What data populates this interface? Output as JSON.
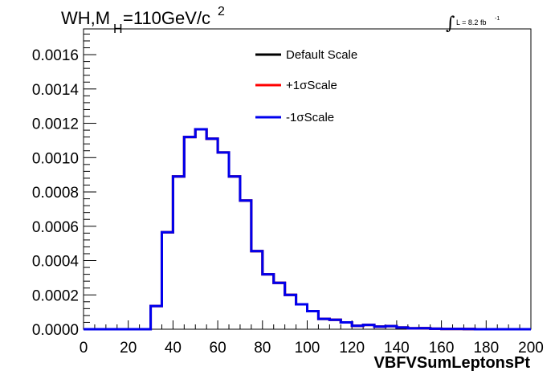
{
  "chart_data": {
    "type": "histogram",
    "title": {
      "prefix": "WH,M",
      "subscript": "H",
      "value": "=110GeV/c",
      "superscript": "2"
    },
    "luminosity": {
      "text": "L = 8.2 fb",
      "superscript": "-1",
      "integral_symbol": "∫"
    },
    "xlabel": "VBFVSumLeptonsPt",
    "ylabel": "",
    "xlim": [
      0,
      200
    ],
    "ylim": [
      0,
      0.00175
    ],
    "x_ticks": [
      0,
      20,
      40,
      60,
      80,
      100,
      120,
      140,
      160,
      180,
      200
    ],
    "x_tick_labels": [
      "0",
      "20",
      "40",
      "60",
      "80",
      "100",
      "120",
      "140",
      "160",
      "180",
      "200"
    ],
    "y_ticks": [
      0,
      0.0002,
      0.0004,
      0.0006,
      0.0008,
      0.001,
      0.0012,
      0.0014,
      0.0016
    ],
    "y_tick_labels": [
      "0.0000",
      "0.0002",
      "0.0004",
      "0.0006",
      "0.0008",
      "0.0010",
      "0.0012",
      "0.0014",
      "0.0016"
    ],
    "bin_edges": [
      0,
      5,
      10,
      15,
      20,
      25,
      30,
      35,
      40,
      45,
      50,
      55,
      60,
      65,
      70,
      75,
      80,
      85,
      90,
      95,
      100,
      105,
      110,
      115,
      120,
      125,
      130,
      135,
      140,
      145,
      150,
      155,
      160,
      165,
      170,
      175,
      180,
      185,
      190,
      195,
      200
    ],
    "legend_position": "top-center",
    "series": [
      {
        "name": "Default Scale",
        "color": "#000000",
        "values": [
          0,
          0,
          0,
          0,
          0,
          0,
          0.000135,
          0.000565,
          0.00089,
          0.00112,
          0.001165,
          0.00111,
          0.00103,
          0.00089,
          0.00075,
          0.000455,
          0.00032,
          0.00027,
          0.0002,
          0.000145,
          0.000105,
          6e-05,
          5.5e-05,
          4e-05,
          2e-05,
          2.5e-05,
          1.5e-05,
          1.8e-05,
          1e-05,
          5e-06,
          6e-06,
          3e-06,
          2e-06,
          2e-06,
          1e-06,
          0,
          0,
          0,
          0,
          0
        ]
      },
      {
        "name": "+1σScale",
        "color": "#ff0000",
        "values": [
          0,
          0,
          0,
          0,
          0,
          0,
          0.000135,
          0.000565,
          0.00089,
          0.00112,
          0.001165,
          0.00111,
          0.00103,
          0.00089,
          0.00075,
          0.000455,
          0.00032,
          0.00027,
          0.0002,
          0.000145,
          0.000105,
          6e-05,
          5.5e-05,
          4e-05,
          2e-05,
          2.5e-05,
          1.5e-05,
          1.8e-05,
          1e-05,
          5e-06,
          6e-06,
          3e-06,
          2e-06,
          2e-06,
          1e-06,
          0,
          0,
          0,
          0,
          0
        ]
      },
      {
        "name": "-1σScale",
        "color": "#0000ee",
        "values": [
          0,
          0,
          0,
          0,
          0,
          0,
          0.000135,
          0.000565,
          0.00089,
          0.00112,
          0.001165,
          0.00111,
          0.00103,
          0.00089,
          0.00075,
          0.000455,
          0.00032,
          0.00027,
          0.0002,
          0.000145,
          0.000105,
          6e-05,
          5.5e-05,
          4e-05,
          2e-05,
          2.5e-05,
          1.5e-05,
          1.8e-05,
          1e-05,
          5e-06,
          6e-06,
          3e-06,
          2e-06,
          2e-06,
          1e-06,
          0,
          0,
          0,
          0,
          0
        ]
      }
    ]
  }
}
